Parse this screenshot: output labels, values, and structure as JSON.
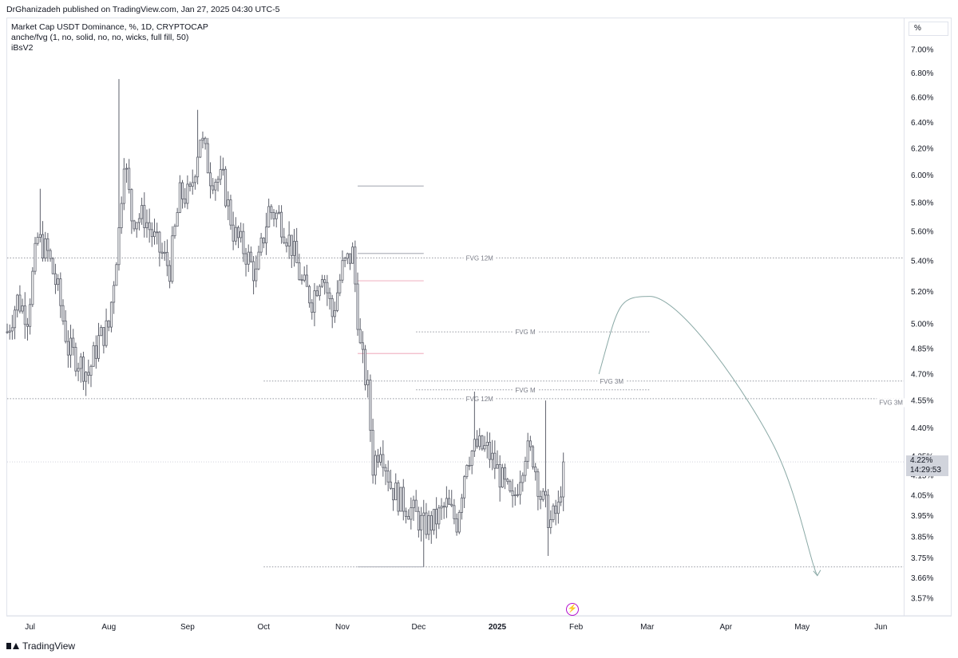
{
  "header": {
    "published": "DrGhanizadeh published on TradingView.com, Jan 27, 2025 04:30 UTC-5"
  },
  "legend": {
    "line1": "Market Cap USDT Dominance, %, 1D, CRYPTOCAP",
    "line2": "anche/fvg (1, no, solid, no, no, wicks, full fill, 50)",
    "line3": "iBsV2"
  },
  "price_axis": {
    "unit_label": "%",
    "last_price": "4.22%",
    "countdown": "14:29:53"
  },
  "footer": {
    "brand": "TradingView"
  },
  "colors": {
    "candle_body": "#ffffff",
    "candle_outline": "#5d606b",
    "projection_curve": "#8aa9a6",
    "level_line": "#9598a1",
    "price_tag_bg": "#d1d4dc",
    "alert_icon": "#b40fce"
  },
  "icons": {
    "alert": "lightning-bolt-icon",
    "brand": "tradingview-logo-icon"
  },
  "chart_data": {
    "type": "candlestick",
    "timeframe": "1D",
    "y_scale": "log",
    "ylim": [
      3.52,
      7.1
    ],
    "y_ticks": [
      {
        "v": 7.0,
        "label": "7.00%"
      },
      {
        "v": 6.8,
        "label": "6.80%"
      },
      {
        "v": 6.6,
        "label": "6.60%"
      },
      {
        "v": 6.4,
        "label": "6.40%"
      },
      {
        "v": 6.2,
        "label": "6.20%"
      },
      {
        "v": 6.0,
        "label": "6.00%"
      },
      {
        "v": 5.8,
        "label": "5.80%"
      },
      {
        "v": 5.6,
        "label": "5.60%"
      },
      {
        "v": 5.4,
        "label": "5.40%"
      },
      {
        "v": 5.2,
        "label": "5.20%"
      },
      {
        "v": 5.0,
        "label": "5.00%"
      },
      {
        "v": 4.85,
        "label": "4.85%"
      },
      {
        "v": 4.7,
        "label": "4.70%"
      },
      {
        "v": 4.55,
        "label": "4.55%"
      },
      {
        "v": 4.4,
        "label": "4.40%"
      },
      {
        "v": 4.25,
        "label": "4.25%"
      },
      {
        "v": 4.15,
        "label": "4.15%"
      },
      {
        "v": 4.05,
        "label": "4.05%"
      },
      {
        "v": 3.95,
        "label": "3.95%"
      },
      {
        "v": 3.85,
        "label": "3.85%"
      },
      {
        "v": 3.75,
        "label": "3.75%"
      },
      {
        "v": 3.66,
        "label": "3.66%"
      },
      {
        "v": 3.57,
        "label": "3.57%"
      }
    ],
    "x_range": [
      "2024-06-22",
      "2025-06-10"
    ],
    "x_ticks": [
      {
        "date": "2024-07-01",
        "label": "Jul",
        "bold": false
      },
      {
        "date": "2024-08-01",
        "label": "Aug",
        "bold": false
      },
      {
        "date": "2024-09-01",
        "label": "Sep",
        "bold": false
      },
      {
        "date": "2024-10-01",
        "label": "Oct",
        "bold": false
      },
      {
        "date": "2024-11-01",
        "label": "Nov",
        "bold": false
      },
      {
        "date": "2024-12-01",
        "label": "Dec",
        "bold": false
      },
      {
        "date": "2025-01-01",
        "label": "2025",
        "bold": true
      },
      {
        "date": "2025-02-01",
        "label": "Feb",
        "bold": false
      },
      {
        "date": "2025-03-01",
        "label": "Mar",
        "bold": false
      },
      {
        "date": "2025-04-01",
        "label": "Apr",
        "bold": false
      },
      {
        "date": "2025-05-01",
        "label": "May",
        "bold": false
      },
      {
        "date": "2025-06-01",
        "label": "Jun",
        "bold": false
      }
    ],
    "price_path": [
      [
        "2024-06-22",
        4.95
      ],
      [
        "2024-06-26",
        5.15
      ],
      [
        "2024-06-30",
        5.05
      ],
      [
        "2024-07-04",
        5.55
      ],
      [
        "2024-07-08",
        5.45
      ],
      [
        "2024-07-12",
        5.2
      ],
      [
        "2024-07-16",
        4.85
      ],
      [
        "2024-07-20",
        4.78
      ],
      [
        "2024-07-24",
        4.7
      ],
      [
        "2024-07-28",
        4.9
      ],
      [
        "2024-08-01",
        4.98
      ],
      [
        "2024-08-05",
        5.6
      ],
      [
        "2024-08-07",
        6.15
      ],
      [
        "2024-08-10",
        5.7
      ],
      [
        "2024-08-15",
        5.7
      ],
      [
        "2024-08-20",
        5.5
      ],
      [
        "2024-08-25",
        5.35
      ],
      [
        "2024-08-29",
        5.85
      ],
      [
        "2024-09-02",
        5.85
      ],
      [
        "2024-09-06",
        6.3
      ],
      [
        "2024-09-10",
        6.0
      ],
      [
        "2024-09-15",
        5.95
      ],
      [
        "2024-09-19",
        5.6
      ],
      [
        "2024-09-24",
        5.45
      ],
      [
        "2024-09-28",
        5.3
      ],
      [
        "2024-10-03",
        5.75
      ],
      [
        "2024-10-07",
        5.7
      ],
      [
        "2024-10-12",
        5.5
      ],
      [
        "2024-10-16",
        5.25
      ],
      [
        "2024-10-20",
        5.15
      ],
      [
        "2024-10-24",
        5.35
      ],
      [
        "2024-10-28",
        5.05
      ],
      [
        "2024-11-01",
        5.35
      ],
      [
        "2024-11-05",
        5.45
      ],
      [
        "2024-11-08",
        4.85
      ],
      [
        "2024-11-11",
        4.6
      ],
      [
        "2024-11-13",
        4.2
      ],
      [
        "2024-11-16",
        4.32
      ],
      [
        "2024-11-20",
        4.1
      ],
      [
        "2024-11-24",
        4.02
      ],
      [
        "2024-11-28",
        3.98
      ],
      [
        "2024-12-03",
        3.9
      ],
      [
        "2024-12-07",
        3.92
      ],
      [
        "2024-12-12",
        4.0
      ],
      [
        "2024-12-16",
        3.92
      ],
      [
        "2024-12-20",
        4.25
      ],
      [
        "2024-12-24",
        4.3
      ],
      [
        "2024-12-28",
        4.28
      ],
      [
        "2025-01-02",
        4.15
      ],
      [
        "2025-01-07",
        4.0
      ],
      [
        "2025-01-12",
        4.28
      ],
      [
        "2025-01-15",
        4.25
      ],
      [
        "2025-01-18",
        4.05
      ],
      [
        "2025-01-22",
        3.92
      ],
      [
        "2025-01-25",
        3.98
      ],
      [
        "2025-01-27",
        4.22
      ]
    ],
    "wick_extremes": [
      {
        "date": "2024-08-05",
        "high": 6.75
      },
      {
        "date": "2024-09-05",
        "high": 6.5
      },
      {
        "date": "2024-07-05",
        "high": 5.9
      },
      {
        "date": "2024-12-03",
        "low": 3.71
      },
      {
        "date": "2024-12-23",
        "high": 4.6
      },
      {
        "date": "2025-01-20",
        "high": 4.55
      },
      {
        "date": "2025-01-21",
        "low": 3.76
      }
    ],
    "last_price": 4.22,
    "fvg_levels": [
      {
        "label": "FVG 12M",
        "price": 5.42,
        "start": "2024-06-22",
        "end": "2025-06-10",
        "label_at": "2024-12-25"
      },
      {
        "label": "FVG M",
        "price": 4.95,
        "start": "2024-11-30",
        "end": "2025-03-02",
        "label_at": "2025-01-12"
      },
      {
        "label": "FVG 3M",
        "price": 4.66,
        "start": "2024-10-01",
        "end": "2025-06-10",
        "label_at": "2025-02-15"
      },
      {
        "label": "FVG M",
        "price": 4.61,
        "start": "2024-11-30",
        "end": "2025-03-02",
        "label_at": "2025-01-12"
      },
      {
        "label": "FVG 12M",
        "price": 4.56,
        "start": "2024-06-22",
        "end": "2025-06-10",
        "label_at": "2024-12-25"
      },
      {
        "label": "FVG 3M",
        "price": 4.54,
        "start": "2025-06-10",
        "end": "2025-06-10",
        "label_at": "2025-06-05"
      },
      {
        "label": "",
        "price": 3.71,
        "start": "2024-10-01",
        "end": "2025-06-10",
        "label_at": ""
      }
    ],
    "solid_levels": [
      {
        "price": 5.92,
        "start": "2024-11-07",
        "end": "2024-12-03",
        "color": "#b2b5be"
      },
      {
        "price": 5.45,
        "start": "2024-11-07",
        "end": "2024-12-03",
        "color": "#b2b5be"
      },
      {
        "price": 5.27,
        "start": "2024-11-07",
        "end": "2024-12-03",
        "color": "#f2b8c6"
      },
      {
        "price": 4.82,
        "start": "2024-11-07",
        "end": "2024-12-03",
        "color": "#f2b8c6"
      },
      {
        "price": 3.71,
        "start": "2024-11-07",
        "end": "2024-12-03",
        "color": "#b2b5be"
      }
    ],
    "projection": {
      "points": [
        [
          "2025-02-10",
          4.7
        ],
        [
          "2025-03-02",
          5.17
        ],
        [
          "2025-04-20",
          4.3
        ],
        [
          "2025-05-07",
          3.67
        ]
      ],
      "arrow_end": [
        "2025-05-07",
        3.67
      ]
    }
  }
}
